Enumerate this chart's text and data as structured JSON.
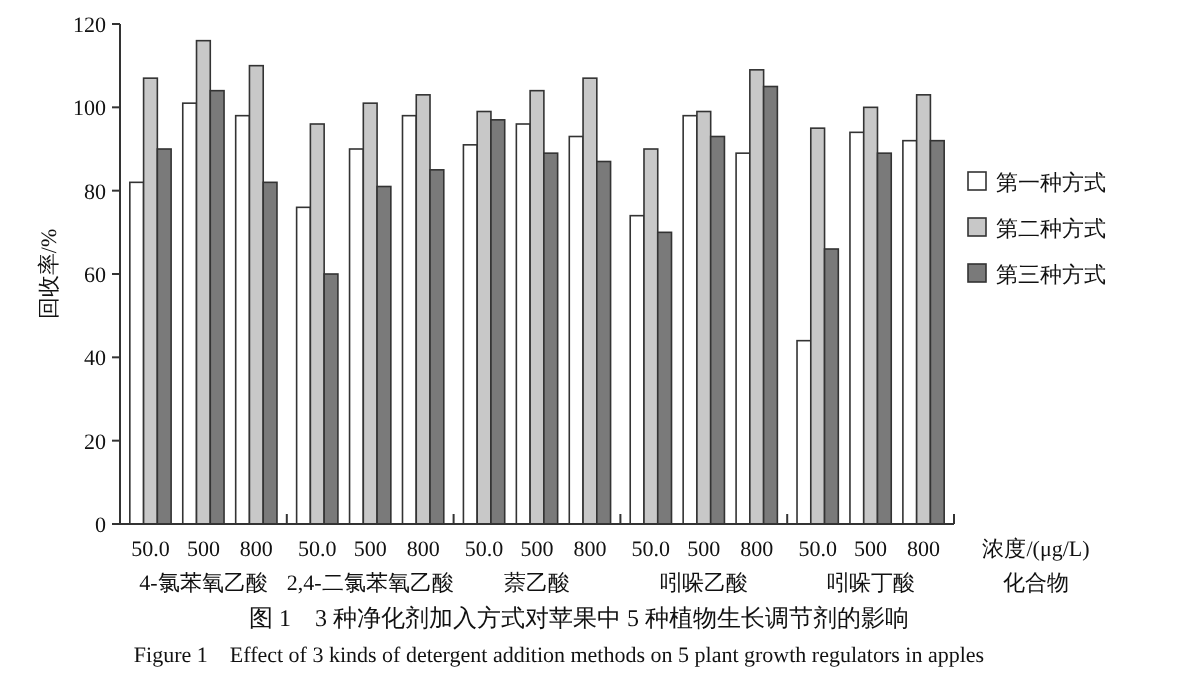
{
  "chart_data": {
    "type": "bar",
    "title": "图 1　3 种净化剂加入方式对苹果中 5 种植物生长调节剂的影响",
    "subtitle": "Figure 1　Effect of 3 kinds of detergent addition methods on 5 plant growth regulators in apples",
    "xlabel": "浓度/(μg/L)",
    "ylabel": "回收率/%",
    "categories": [
      "50.0",
      "500",
      "800",
      "50.0",
      "500",
      "800",
      "50.0",
      "500",
      "800",
      "50.0",
      "500",
      "800",
      "50.0",
      "500",
      "800"
    ],
    "annotations": [
      "4-氯苯氧乙酸",
      "2,4-二氯苯氧乙酸",
      "萘乙酸",
      "吲哚乙酸",
      "吲哚丁酸",
      "化合物"
    ],
    "series": [
      {
        "name": "第一种方式",
        "color": "#ffffff",
        "values": [
          82,
          101,
          98,
          76,
          90,
          98,
          91,
          96,
          93,
          74,
          98,
          89,
          44,
          94,
          92
        ]
      },
      {
        "name": "第二种方式",
        "color": "#c8c8c8",
        "values": [
          107,
          116,
          110,
          96,
          101,
          103,
          99,
          104,
          107,
          90,
          99,
          109,
          95,
          100,
          103
        ]
      },
      {
        "name": "第三种方式",
        "color": "#7a7a7a",
        "values": [
          90,
          104,
          82,
          60,
          81,
          85,
          97,
          89,
          87,
          70,
          93,
          105,
          66,
          89,
          92
        ]
      }
    ],
    "ylim": [
      0,
      120
    ],
    "yticks": [
      0,
      20,
      40,
      60,
      80,
      100,
      120
    ],
    "grid": false,
    "legend": "right"
  }
}
